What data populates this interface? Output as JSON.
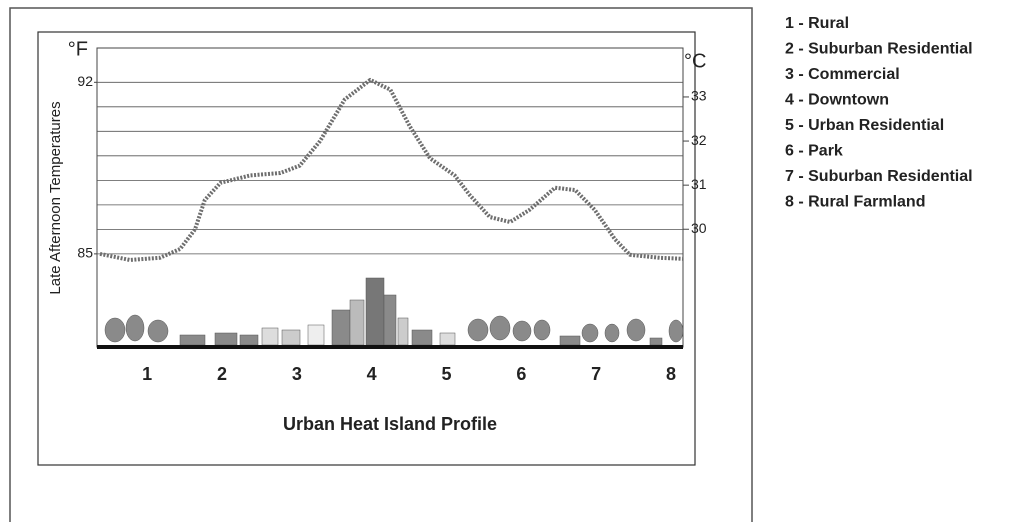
{
  "chart_data": {
    "type": "line",
    "title": "Urban Heat Island Profile",
    "y_label": "Late Afternoon Temperatures",
    "y_unit": "°F",
    "y2_unit": "°C",
    "x": [
      0.37,
      0.77,
      1.17,
      1.44,
      1.64,
      1.77,
      1.98,
      2.38,
      2.78,
      3.04,
      3.31,
      3.64,
      3.98,
      4.25,
      4.51,
      4.78,
      5.11,
      5.31,
      5.58,
      5.85,
      6.11,
      6.45,
      6.72,
      6.98,
      7.25,
      7.45,
      7.85,
      8.16
    ],
    "series": [
      {
        "color": "#6e6e6e",
        "values": [
          85.0,
          84.75,
          84.84,
          85.2,
          86.0,
          87.2,
          87.9,
          88.2,
          88.3,
          88.6,
          89.6,
          91.3,
          92.1,
          91.7,
          90.2,
          88.9,
          88.2,
          87.4,
          86.5,
          86.3,
          86.8,
          87.7,
          87.6,
          86.8,
          85.6,
          84.96,
          84.84,
          84.8
        ]
      }
    ],
    "xlim": [
      0.33,
      8.16
    ],
    "xticks": [
      1,
      2,
      3,
      4,
      5,
      6,
      7,
      8
    ],
    "ylim": [
      81.2,
      93.4
    ],
    "yticks": [
      85,
      92
    ],
    "ygrid": [
      85,
      86,
      87,
      88,
      89,
      90,
      91,
      92
    ],
    "y2lim": [
      27.33,
      34.11
    ],
    "y2ticks": [
      30,
      31,
      32,
      33
    ],
    "legend_items": [
      "1 - Rural",
      "2 - Suburban Residential",
      "3 - Commercial",
      "4 - Downtown",
      "5 - Urban Residential",
      "6 - Park",
      "7 - Suburban Residential",
      "8 - Rural Farmland"
    ]
  }
}
